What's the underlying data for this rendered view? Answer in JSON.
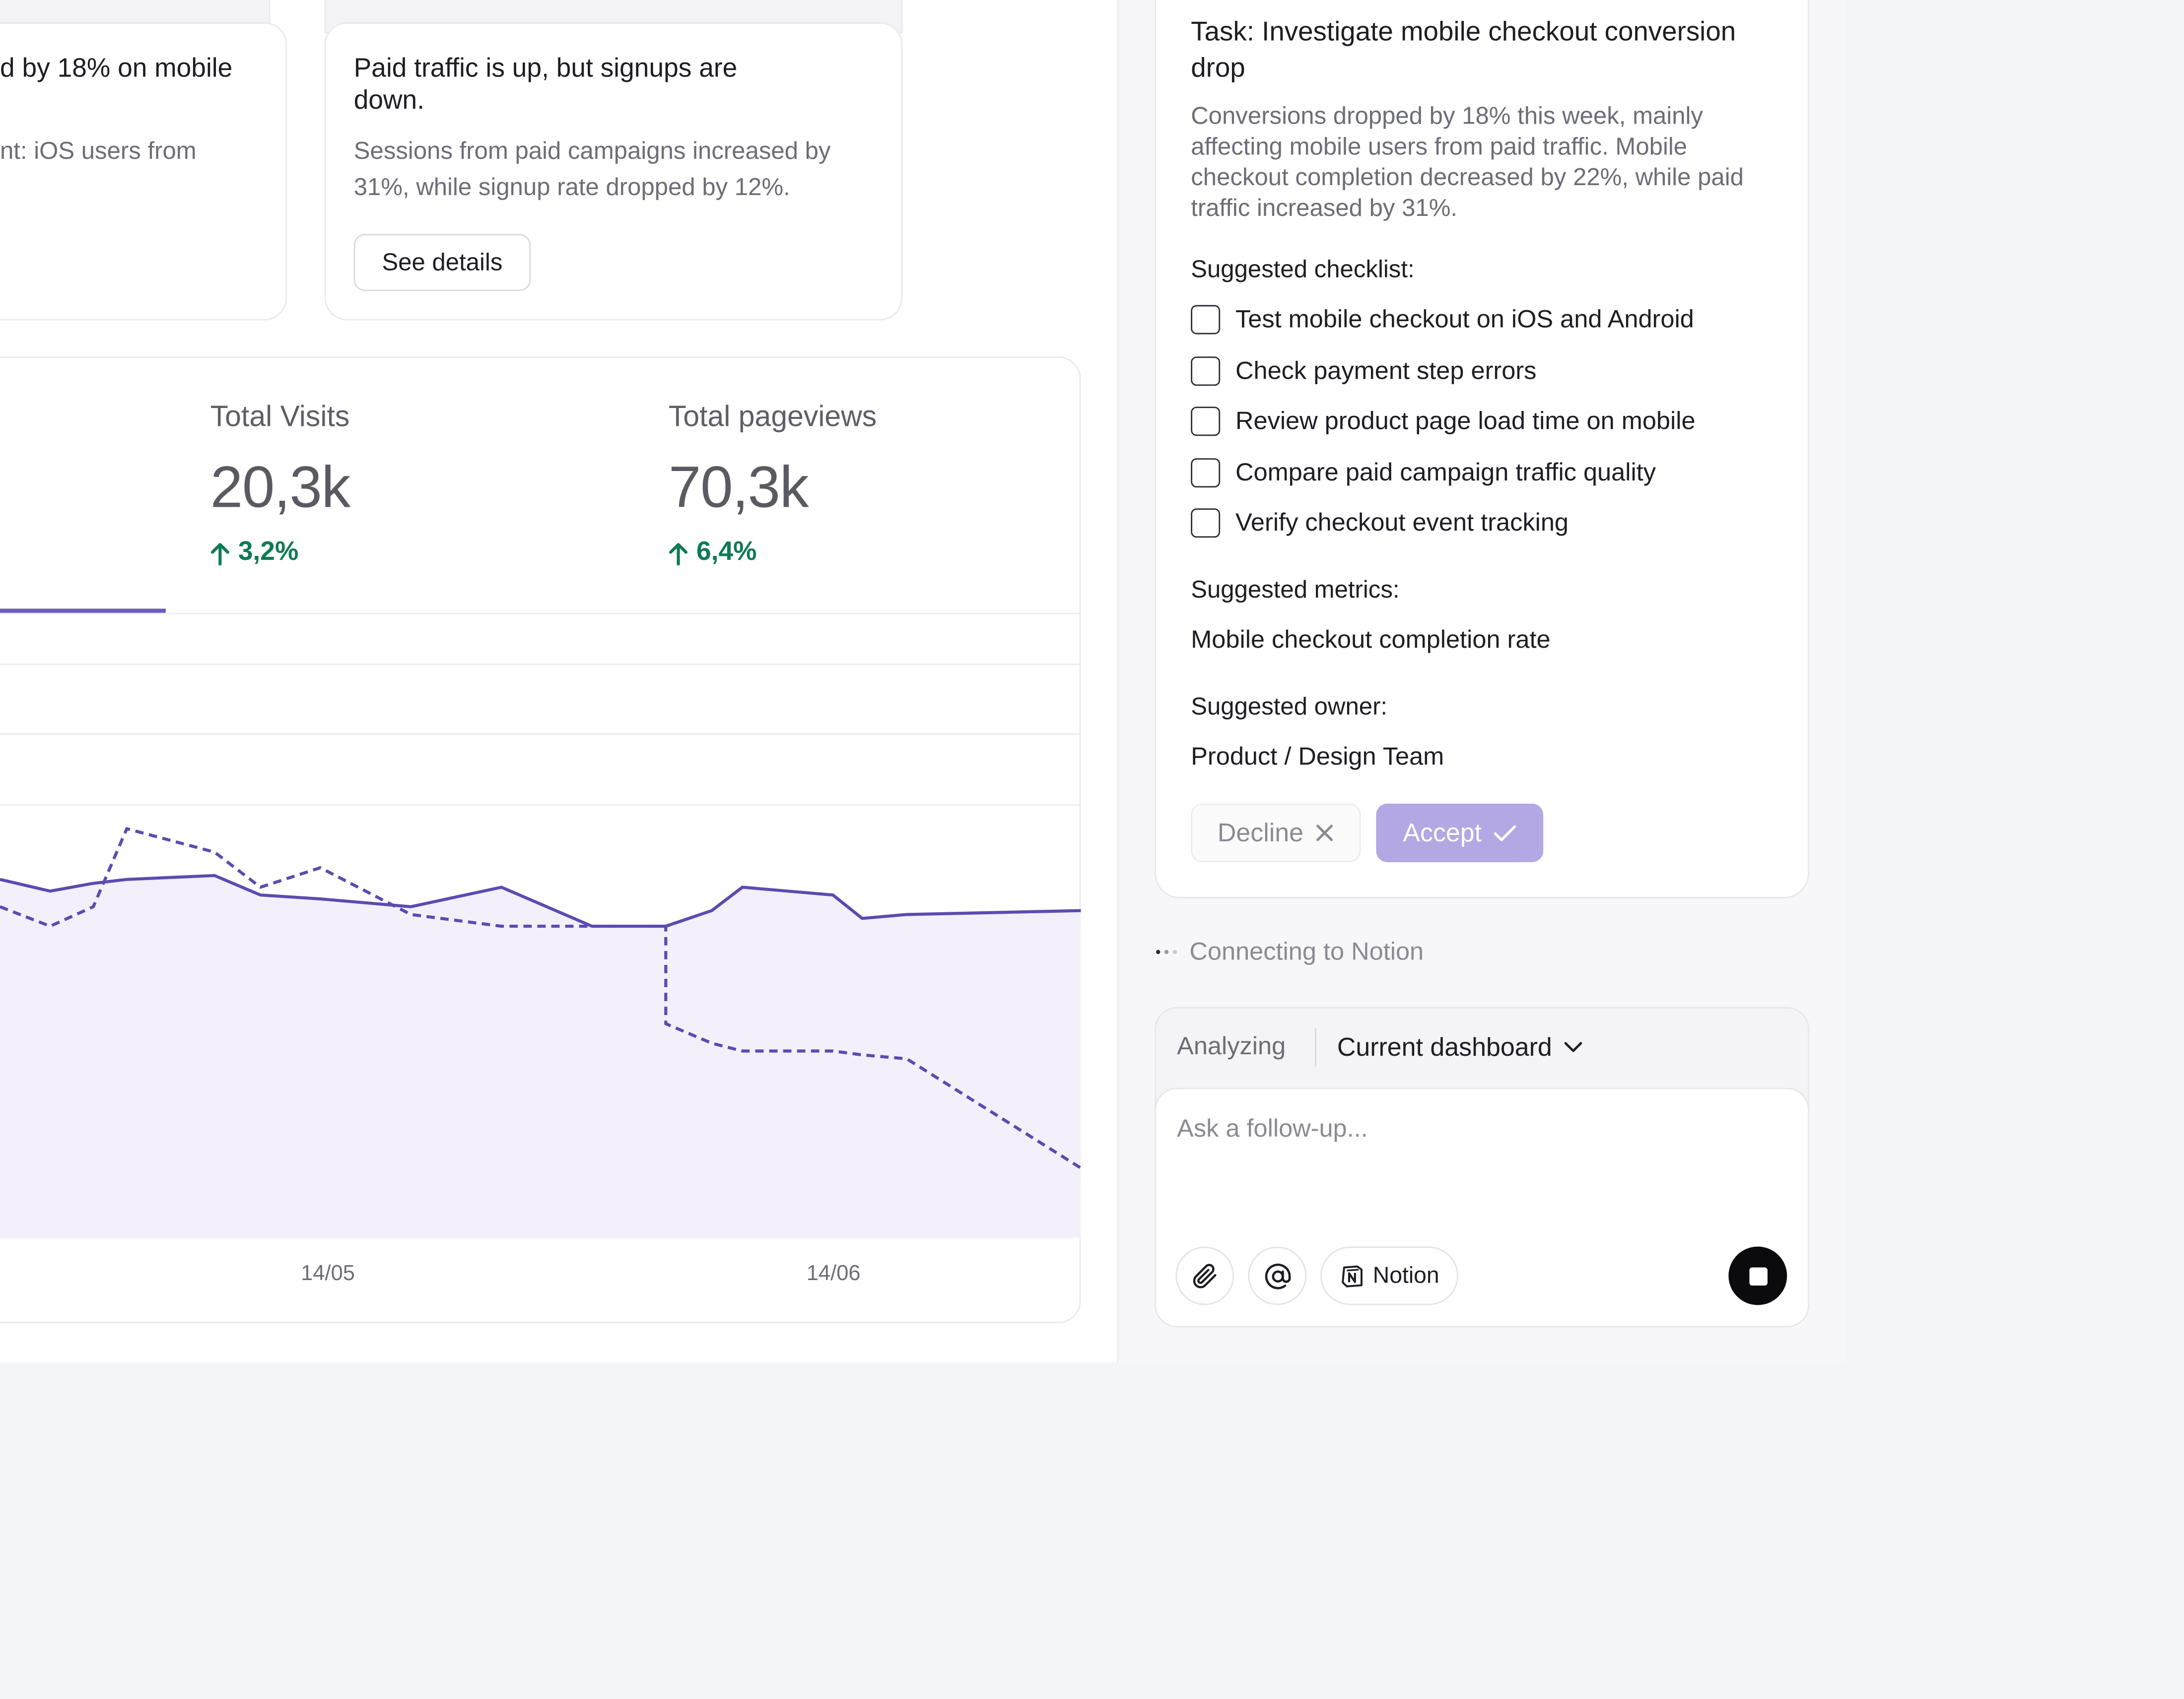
{
  "insights": [
    {
      "title": "d by 18% on mobile",
      "body": "nt: iOS users from"
    },
    {
      "title": "Paid traffic is up, but signups are down.",
      "body": "Sessions from paid campaigns increased by 31%, while signup rate dropped by 12%.",
      "button": "See details"
    }
  ],
  "stats": [
    {
      "label": "Total Visits",
      "value": "20,3k",
      "delta": "3,2%",
      "direction": "up"
    },
    {
      "label": "Total pageviews",
      "value": "70,3k",
      "delta": "6,4%",
      "direction": "up"
    }
  ],
  "chart_data": {
    "type": "line",
    "x_tick_labels": [
      "14/05",
      "14/06"
    ],
    "grid": true,
    "series": [
      {
        "style": "solid",
        "fill": "area",
        "color": "#5b4bb0",
        "values": [
          52,
          49,
          51,
          52,
          53,
          48,
          47,
          45,
          50,
          40,
          40,
          44,
          50,
          48,
          42,
          43,
          44
        ]
      },
      {
        "style": "dashed",
        "color": "#5b4bb0",
        "values": [
          45,
          40,
          45,
          65,
          59,
          50,
          55,
          43,
          40,
          40,
          15,
          10,
          8,
          8,
          7,
          6,
          -22
        ]
      }
    ]
  },
  "task": {
    "title": "Task: Investigate mobile checkout conversion drop",
    "description": "Conversions dropped by 18% this week, mainly affecting mobile users from paid traffic. Mobile checkout completion decreased by 22%, while paid traffic increased by 31%.",
    "checklist_heading": "Suggested checklist:",
    "checklist": [
      "Test mobile checkout on iOS and Android",
      "Check payment step errors",
      "Review product page load time on mobile",
      "Compare paid campaign traffic quality",
      "Verify checkout event tracking"
    ],
    "metrics_heading": "Suggested metrics:",
    "metric": "Mobile checkout completion rate",
    "owner_heading": "Suggested owner:",
    "owner": "Product / Design Team",
    "decline_label": "Decline",
    "accept_label": "Accept"
  },
  "status": {
    "text": "Connecting to Notion"
  },
  "composer": {
    "mode_label": "Analyzing",
    "context": "Current dashboard",
    "placeholder": "Ask a follow-up...",
    "notion_label": "Notion"
  },
  "icons": {
    "attach": "paperclip-icon",
    "mention": "at-sign-icon",
    "notion": "notion-logo-icon",
    "stop": "stop-icon",
    "chevron": "chevron-down-icon",
    "close": "x-icon",
    "check": "check-icon",
    "arrow_up": "arrow-up-icon"
  },
  "colors": {
    "accent": "#5b4bb0",
    "accent_soft": "#b3a8e3",
    "positive": "#0d7a56",
    "area_fill": "#f3f0fc"
  }
}
